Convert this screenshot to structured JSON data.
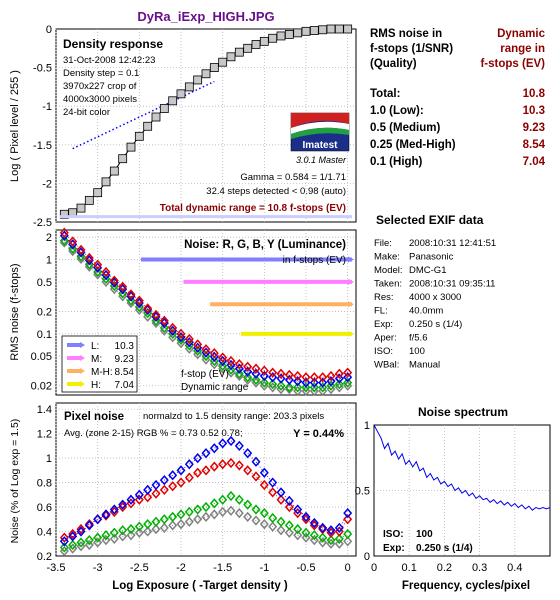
{
  "figure_title": "DyRa_iExp_HIGH.JPG",
  "colors": {
    "title": "#6a0f8c",
    "darkred": "#8b0000",
    "frame": "#000000",
    "grid": "#b8b8b8",
    "blue_line": "#0000ff",
    "L": "#7f7fff",
    "M": "#ff7fff",
    "MH": "#ffb060",
    "H": "#f0f000",
    "series_red": "#e00000",
    "series_green": "#00b000",
    "series_blue": "#0000ee",
    "series_gray": "#808080"
  },
  "density": {
    "title": "Density response",
    "info": [
      "31-Oct-2008 12:42:23",
      "Density step = 0.1",
      "3970x227 crop of",
      "4000x3000 pixels",
      "24-bit color"
    ],
    "ylabel": "Log ( Pixel level / 255 )",
    "yticks": [
      "0",
      "-0.5",
      "-1",
      "-1.5",
      "-2",
      "-2.5"
    ],
    "logo": "Imatest",
    "version": "3.0.1  Master",
    "gamma": "Gamma = 0.584 = 1/1.71",
    "steps": "32.4 steps detected < 0.98 (auto)",
    "total": "Total dynamic range = 10.8 f-stops (EV)"
  },
  "noise_chart": {
    "title": "Noise: R, G, B, Y (Luminance)",
    "subtitle": "in f-stops (EV)",
    "ylabel": "RMS noise (f-stops)",
    "yticks": [
      "2",
      "1",
      "0.5",
      "0.2",
      "0.1",
      "0.05",
      "0.02"
    ],
    "legend": [
      {
        "key": "L:",
        "value": "10.3"
      },
      {
        "key": "M:",
        "value": "9.23"
      },
      {
        "key": "M-H:",
        "value": "8.54"
      },
      {
        "key": "H:",
        "value": "7.04"
      }
    ],
    "note1": "f-stop (EV)",
    "note2": "Dynamic range"
  },
  "pixel_chart": {
    "title": "Pixel noise",
    "subtitle": "normalzd to 1.5 density range: 203.3 pixels",
    "avg": "Avg. (zone 2-15) RGB % = 0.73  0.52  0.78;",
    "yval": "Y = 0.44%",
    "ylabel": "Noise (% of Log exp = 1.5)",
    "xlabel": "Log Exposure ( -Target density )",
    "yticks": [
      "1.4",
      "1.2",
      "1",
      "0.8",
      "0.6",
      "0.4",
      "0.2"
    ],
    "xticks": [
      "-3.5",
      "-3",
      "-2.5",
      "-2",
      "-1.5",
      "-1",
      "-0.5",
      "0"
    ]
  },
  "rms_table": {
    "h1": [
      "RMS noise in",
      "f-stops (1/SNR)",
      "(Quality)"
    ],
    "h2": [
      "Dynamic",
      "range in",
      "f-stops (EV)"
    ],
    "rows": [
      {
        "label": "Total:",
        "value": "10.8"
      },
      {
        "label": "1.0   (Low):",
        "value": "10.3"
      },
      {
        "label": "0.5   (Medium)",
        "value": "9.23"
      },
      {
        "label": "0.25 (Med-High)",
        "value": "8.54"
      },
      {
        "label": "0.1   (High)",
        "value": "7.04"
      }
    ]
  },
  "exif": {
    "title": "Selected EXIF data",
    "rows": [
      {
        "k": "File:",
        "v": "2008:10:31 12:41:51"
      },
      {
        "k": "Make:",
        "v": "Panasonic"
      },
      {
        "k": "Model:",
        "v": "DMC-G1"
      },
      {
        "k": "Taken:",
        "v": "2008:10:31 09:35:11"
      },
      {
        "k": "Res:",
        "v": "4000 x 3000"
      },
      {
        "k": "FL:",
        "v": "40.0mm"
      },
      {
        "k": "Exp:",
        "v": "0.250 s  (1/4)"
      },
      {
        "k": "Aper:",
        "v": "f/5.6"
      },
      {
        "k": "ISO:",
        "v": "100"
      },
      {
        "k": "WBal:",
        "v": "Manual"
      }
    ]
  },
  "spectrum": {
    "title": "Noise spectrum",
    "xlabel": "Frequency, cycles/pixel",
    "yticks": [
      "1",
      "0.5",
      "0"
    ],
    "xticks": [
      "0",
      "0.1",
      "0.2",
      "0.3",
      "0.4"
    ],
    "iso_label": "ISO:",
    "iso_value": "100",
    "exp_label": "Exp:",
    "exp_value": "0.250 s  (1/4)"
  },
  "chart_data": [
    {
      "type": "scatter",
      "name": "density",
      "xlim": [
        -3.5,
        0.1
      ],
      "ylim": [
        -2.5,
        0
      ],
      "grid": true,
      "x": [
        -3.4,
        -3.3,
        -3.2,
        -3.1,
        -3.0,
        -2.9,
        -2.8,
        -2.7,
        -2.6,
        -2.5,
        -2.4,
        -2.3,
        -2.2,
        -2.1,
        -2.0,
        -1.9,
        -1.8,
        -1.7,
        -1.6,
        -1.5,
        -1.4,
        -1.3,
        -1.2,
        -1.1,
        -1.0,
        -0.9,
        -0.8,
        -0.7,
        -0.6,
        -0.5,
        -0.4,
        -0.3,
        -0.2,
        -0.1,
        0.0
      ],
      "y": [
        -2.4,
        -2.38,
        -2.32,
        -2.22,
        -2.12,
        -1.98,
        -1.84,
        -1.68,
        -1.53,
        -1.39,
        -1.26,
        -1.14,
        -1.03,
        -0.93,
        -0.84,
        -0.75,
        -0.66,
        -0.58,
        -0.5,
        -0.43,
        -0.36,
        -0.3,
        -0.25,
        -0.2,
        -0.16,
        -0.12,
        -0.09,
        -0.07,
        -0.05,
        -0.03,
        -0.02,
        -0.01,
        0.0,
        0.0,
        0.0
      ],
      "fit_line": [
        [
          -3.3,
          -1.55
        ],
        [
          -1.6,
          -0.68
        ]
      ],
      "total_line_y": -2.43
    },
    {
      "type": "line",
      "name": "noise",
      "yscale": "log",
      "xlim": [
        -3.5,
        0.1
      ],
      "ylim": [
        0.015,
        2.5
      ],
      "grid": true,
      "x": [
        -3.4,
        -3.3,
        -3.2,
        -3.1,
        -3.0,
        -2.9,
        -2.8,
        -2.7,
        -2.6,
        -2.5,
        -2.4,
        -2.3,
        -2.2,
        -2.1,
        -2.0,
        -1.9,
        -1.8,
        -1.7,
        -1.6,
        -1.5,
        -1.4,
        -1.3,
        -1.2,
        -1.1,
        -1.0,
        -0.9,
        -0.8,
        -0.7,
        -0.6,
        -0.5,
        -0.4,
        -0.3,
        -0.2,
        -0.1,
        0.0
      ],
      "series": [
        {
          "color": "red",
          "values": [
            2.3,
            1.75,
            1.35,
            1.05,
            0.85,
            0.68,
            0.52,
            0.43,
            0.34,
            0.28,
            0.22,
            0.18,
            0.15,
            0.12,
            0.1,
            0.085,
            0.072,
            0.062,
            0.055,
            0.048,
            0.043,
            0.039,
            0.036,
            0.034,
            0.032,
            0.03,
            0.029,
            0.028,
            0.027,
            0.026,
            0.026,
            0.026,
            0.027,
            0.029,
            0.03
          ]
        },
        {
          "color": "blue",
          "values": [
            2.1,
            1.6,
            1.25,
            0.98,
            0.78,
            0.62,
            0.49,
            0.4,
            0.32,
            0.26,
            0.21,
            0.17,
            0.14,
            0.11,
            0.09,
            0.077,
            0.065,
            0.056,
            0.049,
            0.043,
            0.038,
            0.034,
            0.031,
            0.029,
            0.027,
            0.026,
            0.025,
            0.024,
            0.023,
            0.022,
            0.022,
            0.022,
            0.023,
            0.025,
            0.026
          ]
        },
        {
          "color": "green",
          "values": [
            1.8,
            1.4,
            1.1,
            0.86,
            0.68,
            0.55,
            0.44,
            0.35,
            0.28,
            0.23,
            0.19,
            0.15,
            0.12,
            0.1,
            0.083,
            0.07,
            0.059,
            0.05,
            0.043,
            0.037,
            0.033,
            0.029,
            0.026,
            0.024,
            0.022,
            0.021,
            0.02,
            0.019,
            0.019,
            0.019,
            0.019,
            0.019,
            0.02,
            0.021,
            0.022
          ]
        },
        {
          "color": "gray",
          "values": [
            1.7,
            1.3,
            1.02,
            0.8,
            0.63,
            0.5,
            0.4,
            0.32,
            0.26,
            0.21,
            0.17,
            0.14,
            0.11,
            0.09,
            0.075,
            0.063,
            0.053,
            0.045,
            0.039,
            0.034,
            0.03,
            0.027,
            0.024,
            0.022,
            0.02,
            0.019,
            0.018,
            0.018,
            0.017,
            0.017,
            0.017,
            0.017,
            0.018,
            0.019,
            0.02
          ]
        }
      ],
      "thresholds": [
        {
          "label": "L",
          "level": 1.0,
          "start": -2.48
        },
        {
          "label": "M",
          "level": 0.5,
          "start": -1.97
        },
        {
          "label": "M-H",
          "level": 0.25,
          "start": -1.65
        },
        {
          "label": "H",
          "level": 0.1,
          "start": -1.28
        }
      ]
    },
    {
      "type": "line",
      "name": "pixel",
      "xlim": [
        -3.5,
        0.1
      ],
      "ylim": [
        0.2,
        1.45
      ],
      "grid": true,
      "x": [
        -3.4,
        -3.3,
        -3.2,
        -3.1,
        -3.0,
        -2.9,
        -2.8,
        -2.7,
        -2.6,
        -2.5,
        -2.4,
        -2.3,
        -2.2,
        -2.1,
        -2.0,
        -1.9,
        -1.8,
        -1.7,
        -1.6,
        -1.5,
        -1.4,
        -1.3,
        -1.2,
        -1.1,
        -1.0,
        -0.9,
        -0.8,
        -0.7,
        -0.6,
        -0.5,
        -0.4,
        -0.3,
        -0.2,
        -0.1,
        0.0
      ],
      "series": [
        {
          "color": "red",
          "values": [
            0.35,
            0.38,
            0.42,
            0.46,
            0.5,
            0.53,
            0.56,
            0.6,
            0.63,
            0.66,
            0.68,
            0.71,
            0.74,
            0.77,
            0.8,
            0.84,
            0.88,
            0.9,
            0.93,
            0.95,
            0.96,
            0.94,
            0.9,
            0.85,
            0.78,
            0.72,
            0.66,
            0.6,
            0.55,
            0.5,
            0.45,
            0.42,
            0.39,
            0.4,
            0.5
          ]
        },
        {
          "color": "blue",
          "values": [
            0.32,
            0.36,
            0.4,
            0.45,
            0.5,
            0.54,
            0.58,
            0.62,
            0.66,
            0.7,
            0.74,
            0.78,
            0.82,
            0.86,
            0.9,
            0.95,
            1.0,
            1.04,
            1.08,
            1.12,
            1.14,
            1.1,
            1.04,
            0.97,
            0.88,
            0.8,
            0.72,
            0.65,
            0.58,
            0.52,
            0.47,
            0.43,
            0.41,
            0.43,
            0.55
          ]
        },
        {
          "color": "green",
          "values": [
            0.27,
            0.29,
            0.31,
            0.33,
            0.35,
            0.37,
            0.39,
            0.41,
            0.42,
            0.44,
            0.46,
            0.48,
            0.5,
            0.52,
            0.54,
            0.56,
            0.58,
            0.6,
            0.63,
            0.66,
            0.69,
            0.66,
            0.62,
            0.58,
            0.55,
            0.51,
            0.48,
            0.45,
            0.42,
            0.39,
            0.37,
            0.35,
            0.33,
            0.34,
            0.38
          ]
        },
        {
          "color": "gray",
          "values": [
            0.24,
            0.26,
            0.28,
            0.29,
            0.31,
            0.33,
            0.34,
            0.36,
            0.37,
            0.39,
            0.4,
            0.42,
            0.43,
            0.45,
            0.46,
            0.48,
            0.5,
            0.52,
            0.54,
            0.56,
            0.57,
            0.55,
            0.52,
            0.49,
            0.46,
            0.44,
            0.41,
            0.39,
            0.37,
            0.35,
            0.33,
            0.31,
            0.3,
            0.3,
            0.32
          ]
        }
      ]
    },
    {
      "type": "line",
      "name": "spectrum",
      "xlim": [
        0,
        0.5
      ],
      "ylim": [
        0,
        1
      ],
      "grid": true,
      "x": [
        0.0,
        0.01,
        0.02,
        0.03,
        0.04,
        0.05,
        0.06,
        0.07,
        0.08,
        0.09,
        0.1,
        0.11,
        0.12,
        0.13,
        0.14,
        0.15,
        0.16,
        0.17,
        0.18,
        0.19,
        0.2,
        0.21,
        0.22,
        0.23,
        0.24,
        0.25,
        0.26,
        0.27,
        0.28,
        0.29,
        0.3,
        0.31,
        0.32,
        0.33,
        0.34,
        0.35,
        0.36,
        0.37,
        0.38,
        0.39,
        0.4,
        0.41,
        0.42,
        0.43,
        0.44,
        0.45,
        0.46,
        0.47,
        0.48,
        0.49,
        0.5
      ],
      "values": [
        1.0,
        0.95,
        0.9,
        0.82,
        0.86,
        0.77,
        0.8,
        0.74,
        0.78,
        0.7,
        0.73,
        0.68,
        0.72,
        0.65,
        0.67,
        0.6,
        0.63,
        0.58,
        0.6,
        0.55,
        0.57,
        0.53,
        0.55,
        0.5,
        0.52,
        0.48,
        0.5,
        0.46,
        0.48,
        0.44,
        0.46,
        0.43,
        0.44,
        0.41,
        0.43,
        0.4,
        0.42,
        0.39,
        0.41,
        0.38,
        0.4,
        0.37,
        0.39,
        0.36,
        0.38,
        0.35,
        0.37,
        0.36,
        0.37,
        0.36,
        0.37
      ]
    }
  ]
}
